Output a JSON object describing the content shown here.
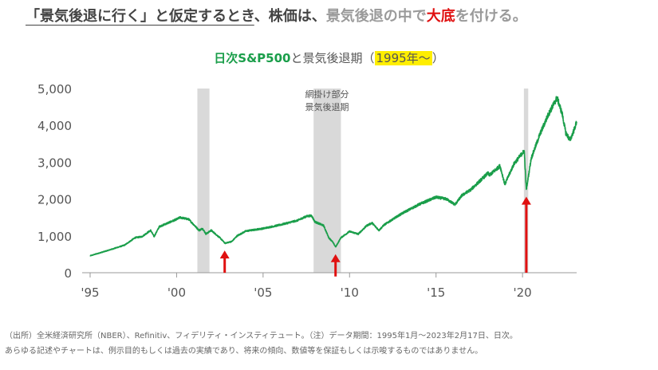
{
  "headline": {
    "part1": "「景気後退に行く」と仮定するとき",
    "part2": "、株価は、",
    "part3": "景気後退の中で",
    "part4": "大底",
    "part5": "を付ける。"
  },
  "subtitle": {
    "series_label": "日次S&P500",
    "connector": "と景気後退期（",
    "period": "1995年〜",
    "close": "）"
  },
  "colors": {
    "line": "#1a9e4a",
    "recession_shade": "#d9d9d9",
    "arrow": "#e01010",
    "axis": "#999999"
  },
  "annotation": {
    "line1": "網掛け部分",
    "line2": "景気後退期"
  },
  "chart_data": {
    "type": "line",
    "title": "日次S&P500と景気後退期（1995年〜）",
    "xlabel": "",
    "ylabel": "",
    "xlim": [
      1995.0,
      2023.13
    ],
    "ylim": [
      0,
      5000
    ],
    "grid": false,
    "x_ticks": [
      1995,
      2000,
      2005,
      2010,
      2015,
      2020
    ],
    "x_tick_labels": [
      "'95",
      "'00",
      "'05",
      "'10",
      "'15",
      "'20"
    ],
    "y_ticks": [
      0,
      1000,
      2000,
      3000,
      4000,
      5000
    ],
    "y_tick_labels": [
      "0",
      "1,000",
      "2,000",
      "3,000",
      "4,000",
      "5,000"
    ],
    "series": [
      {
        "x": [
          1995.0,
          1996.0,
          1997.0,
          1997.6,
          1998.0,
          1998.5,
          1998.7,
          1999.0,
          1999.5,
          2000.0,
          2000.2,
          2000.7,
          2001.0,
          2001.3,
          2001.5,
          2001.7,
          2002.0,
          2002.5,
          2002.8,
          2003.2,
          2003.5,
          2004.0,
          2005.0,
          2006.0,
          2007.0,
          2007.5,
          2007.8,
          2008.0,
          2008.5,
          2008.8,
          2009.0,
          2009.2,
          2009.5,
          2010.0,
          2010.5,
          2011.0,
          2011.3,
          2011.7,
          2012.0,
          2013.0,
          2014.0,
          2015.0,
          2015.6,
          2016.1,
          2016.5,
          2017.0,
          2018.0,
          2018.1,
          2018.7,
          2018.98,
          2019.5,
          2020.0,
          2020.1,
          2020.22,
          2020.5,
          2021.0,
          2021.5,
          2022.0,
          2022.3,
          2022.5,
          2022.75,
          2023.0,
          2023.13
        ],
        "y": [
          460,
          600,
          750,
          950,
          980,
          1150,
          980,
          1250,
          1350,
          1450,
          1500,
          1450,
          1300,
          1150,
          1200,
          1050,
          1150,
          950,
          800,
          850,
          1000,
          1130,
          1200,
          1300,
          1420,
          1530,
          1550,
          1380,
          1280,
          950,
          850,
          700,
          950,
          1120,
          1050,
          1280,
          1350,
          1150,
          1300,
          1600,
          1850,
          2050,
          2000,
          1850,
          2100,
          2250,
          2700,
          2650,
          2900,
          2400,
          2950,
          3250,
          3300,
          2250,
          3100,
          3750,
          4300,
          4750,
          4300,
          3800,
          3600,
          3900,
          4100
        ]
      }
    ],
    "recessions": [
      {
        "start": 2001.2,
        "end": 2001.9
      },
      {
        "start": 2007.92,
        "end": 2009.5
      },
      {
        "start": 2020.08,
        "end": 2020.33
      }
    ],
    "bottom_markers": [
      {
        "x": 2002.78,
        "y": 777
      },
      {
        "x": 2009.19,
        "y": 677
      },
      {
        "x": 2020.22,
        "y": 2237
      }
    ]
  },
  "footnotes": {
    "line1": "（出所）全米経済研究所（NBER）、Refinitiv、フィデリティ・インスティテュート。（注）データ期間：1995年1月〜2023年2月17日、日次。",
    "line2": "あらゆる記述やチャートは、例示目的もしくは過去の実績であり、将来の傾向、数値等を保証もしくは示唆するものではありません。"
  }
}
